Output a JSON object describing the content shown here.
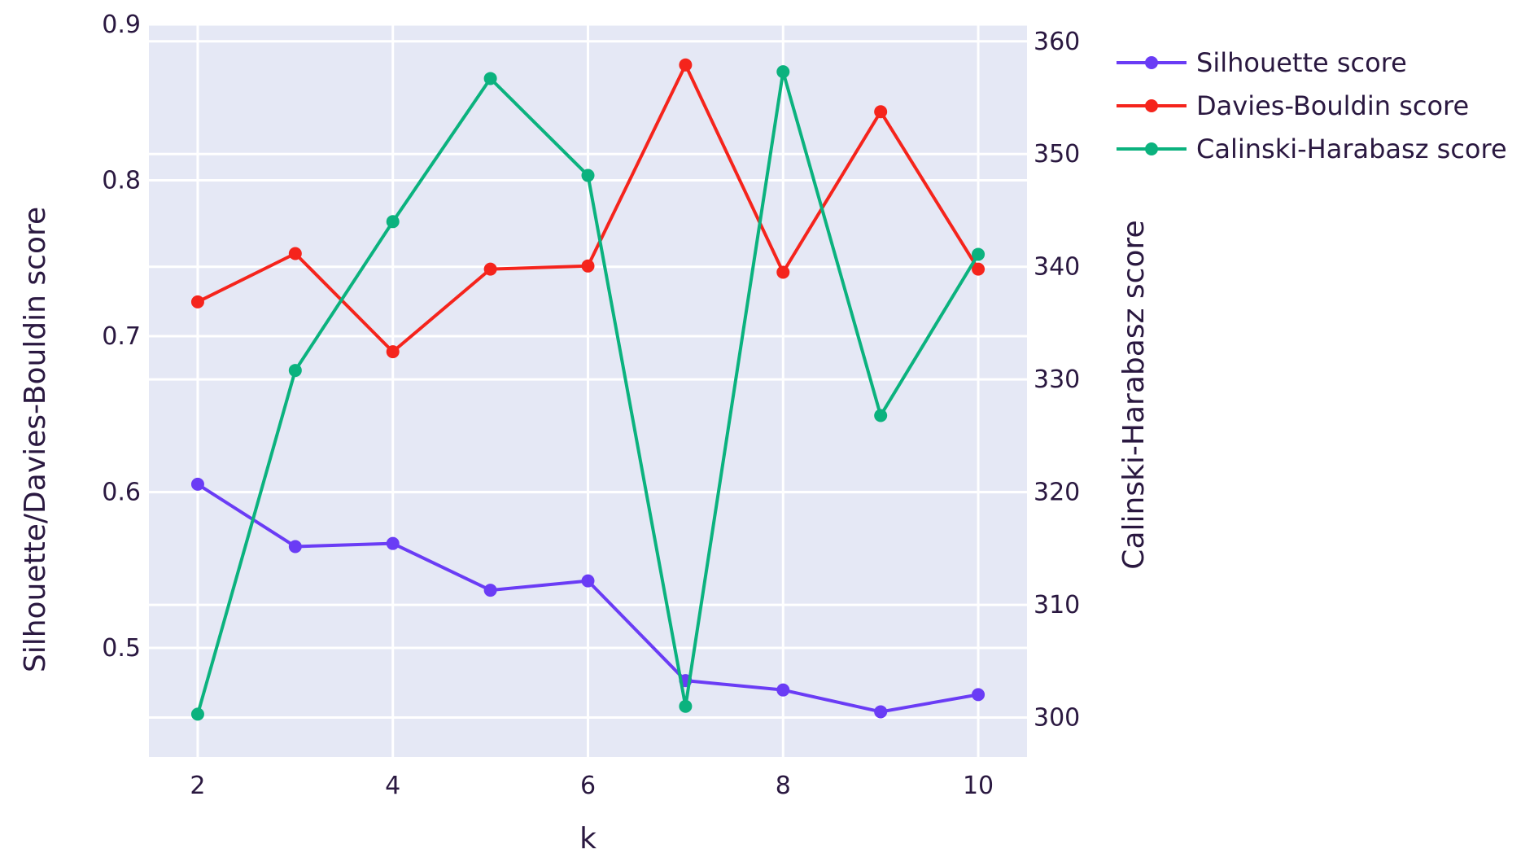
{
  "chart_data": {
    "type": "line",
    "xlabel": "k",
    "ylabel_left": "Silhouette/Davies-Bouldin score",
    "ylabel_right": "Calinski-Harabasz score",
    "x": [
      2,
      3,
      4,
      5,
      6,
      7,
      8,
      9,
      10
    ],
    "xlim": [
      1.5,
      10.5
    ],
    "x_ticks": [
      "2",
      "4",
      "6",
      "8",
      "10"
    ],
    "ylim_left": [
      0.43,
      0.9
    ],
    "y_ticks_left": [
      "0.5",
      "0.6",
      "0.7",
      "0.8",
      "0.9"
    ],
    "ylim_right": [
      296.5,
      361.5
    ],
    "y_ticks_right": [
      "300",
      "310",
      "320",
      "330",
      "340",
      "350",
      "360"
    ],
    "background_color": "#e5e8f5",
    "grid": true,
    "legend_position": "top-right, outside plot",
    "series": [
      {
        "name": "Silhouette score",
        "axis": "left",
        "color": "#6a3cf5",
        "values": [
          0.605,
          0.565,
          0.567,
          0.537,
          0.543,
          0.479,
          0.473,
          0.459,
          0.47
        ]
      },
      {
        "name": "Davies-Bouldin score",
        "axis": "left",
        "color": "#f5241c",
        "values": [
          0.722,
          0.753,
          0.69,
          0.743,
          0.745,
          0.874,
          0.741,
          0.844,
          0.743
        ]
      },
      {
        "name": "Calinski-Harabasz score",
        "axis": "right",
        "color": "#0bb27e",
        "values": [
          300.3,
          330.8,
          344.0,
          356.7,
          348.1,
          301.0,
          357.3,
          326.8,
          341.1
        ]
      }
    ]
  }
}
